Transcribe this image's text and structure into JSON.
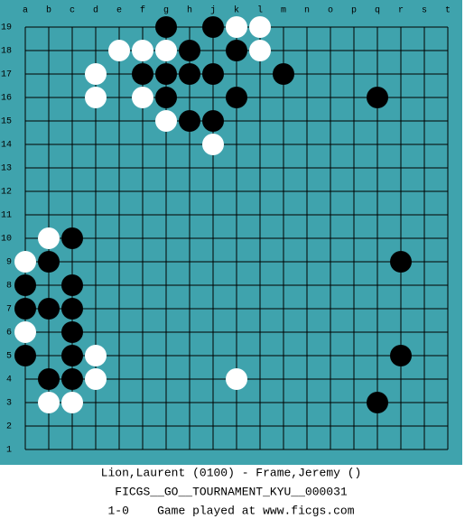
{
  "board": {
    "columns": [
      "a",
      "b",
      "c",
      "d",
      "e",
      "f",
      "g",
      "h",
      "j",
      "k",
      "l",
      "m",
      "n",
      "o",
      "p",
      "q",
      "r",
      "s",
      "t"
    ],
    "rows": [
      "19",
      "18",
      "17",
      "16",
      "15",
      "14",
      "13",
      "12",
      "11",
      "10",
      "9",
      "8",
      "7",
      "6",
      "5",
      "4",
      "3",
      "2",
      "1"
    ],
    "stones": [
      {
        "color": "black",
        "point": "g19"
      },
      {
        "color": "black",
        "point": "j19"
      },
      {
        "color": "white",
        "point": "k19"
      },
      {
        "color": "white",
        "point": "l19"
      },
      {
        "color": "white",
        "point": "e18"
      },
      {
        "color": "white",
        "point": "f18"
      },
      {
        "color": "white",
        "point": "g18"
      },
      {
        "color": "black",
        "point": "h18"
      },
      {
        "color": "black",
        "point": "k18"
      },
      {
        "color": "white",
        "point": "l18"
      },
      {
        "color": "white",
        "point": "d17"
      },
      {
        "color": "black",
        "point": "f17"
      },
      {
        "color": "black",
        "point": "g17"
      },
      {
        "color": "black",
        "point": "h17"
      },
      {
        "color": "black",
        "point": "j17"
      },
      {
        "color": "black",
        "point": "m17"
      },
      {
        "color": "white",
        "point": "d16"
      },
      {
        "color": "white",
        "point": "f16"
      },
      {
        "color": "black",
        "point": "g16"
      },
      {
        "color": "black",
        "point": "k16"
      },
      {
        "color": "black",
        "point": "q16"
      },
      {
        "color": "white",
        "point": "g15"
      },
      {
        "color": "black",
        "point": "h15"
      },
      {
        "color": "black",
        "point": "j15"
      },
      {
        "color": "white",
        "point": "j14"
      },
      {
        "color": "white",
        "point": "b10"
      },
      {
        "color": "black",
        "point": "c10"
      },
      {
        "color": "white",
        "point": "a9"
      },
      {
        "color": "black",
        "point": "b9"
      },
      {
        "color": "black",
        "point": "r9"
      },
      {
        "color": "black",
        "point": "a8"
      },
      {
        "color": "black",
        "point": "c8"
      },
      {
        "color": "black",
        "point": "a7"
      },
      {
        "color": "black",
        "point": "b7"
      },
      {
        "color": "black",
        "point": "c7"
      },
      {
        "color": "white",
        "point": "a6"
      },
      {
        "color": "black",
        "point": "c6"
      },
      {
        "color": "black",
        "point": "a5"
      },
      {
        "color": "black",
        "point": "c5"
      },
      {
        "color": "white",
        "point": "d5"
      },
      {
        "color": "black",
        "point": "r5"
      },
      {
        "color": "black",
        "point": "b4"
      },
      {
        "color": "black",
        "point": "c4"
      },
      {
        "color": "white",
        "point": "d4"
      },
      {
        "color": "white",
        "point": "k4"
      },
      {
        "color": "white",
        "point": "b3"
      },
      {
        "color": "white",
        "point": "c3"
      },
      {
        "color": "black",
        "point": "q3"
      }
    ]
  },
  "footer": {
    "players": "Lion,Laurent (0100) - Frame,Jeremy ()",
    "event": "FICGS__GO__TOURNAMENT_KYU__000031",
    "result": "1-0    Game played at www.ficgs.com"
  }
}
